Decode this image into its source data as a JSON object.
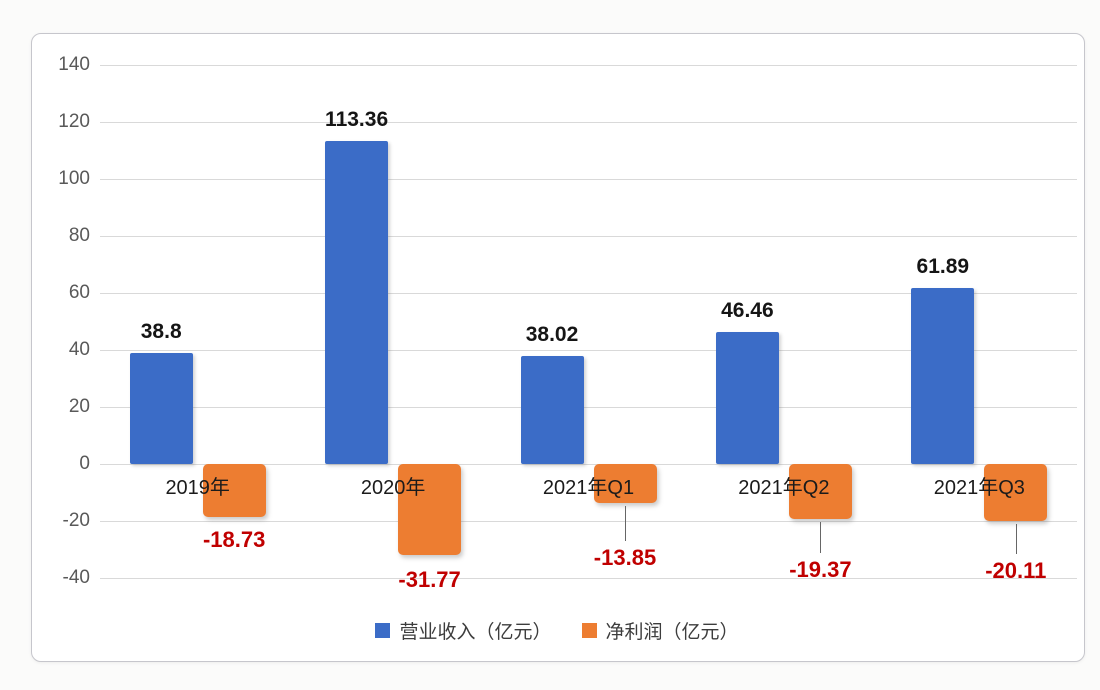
{
  "chart_data": {
    "type": "bar",
    "categories": [
      "2019年",
      "2020年",
      "2021年Q1",
      "2021年Q2",
      "2021年Q3"
    ],
    "series": [
      {
        "name": "营业收入（亿元）",
        "color": "#3B6CC7",
        "values": [
          38.8,
          113.36,
          38.02,
          46.46,
          61.89
        ],
        "data_labels": [
          "38.8",
          "113.36",
          "38.02",
          "46.46",
          "61.89"
        ],
        "data_label_color": "#151515"
      },
      {
        "name": "净利润（亿元）",
        "color": "#ED7D31",
        "values": [
          -18.73,
          -31.77,
          -13.85,
          -19.37,
          -20.11
        ],
        "data_labels": [
          "-18.73",
          "-31.77",
          "-13.85",
          "-19.37",
          "-20.11"
        ],
        "data_label_color": "#C00000",
        "label_gaps": [
          10,
          12,
          42,
          38,
          37
        ],
        "leader_lines": [
          false,
          false,
          true,
          true,
          true
        ]
      }
    ],
    "ylim": [
      -40,
      140
    ],
    "ytick_step": 20,
    "ytick_labels": [
      "140",
      "120",
      "100",
      "80",
      "60",
      "40",
      "20",
      "0",
      "-20",
      "-40"
    ],
    "grid": true,
    "legend_position": "bottom",
    "colors": {
      "gridline": "#d9d9d9",
      "axis_tick_text": "#595959",
      "category_text": "#1b1b1b",
      "leader_line": "#666666",
      "frame_border": "#c6c6cc",
      "background": "#ffffff"
    }
  }
}
